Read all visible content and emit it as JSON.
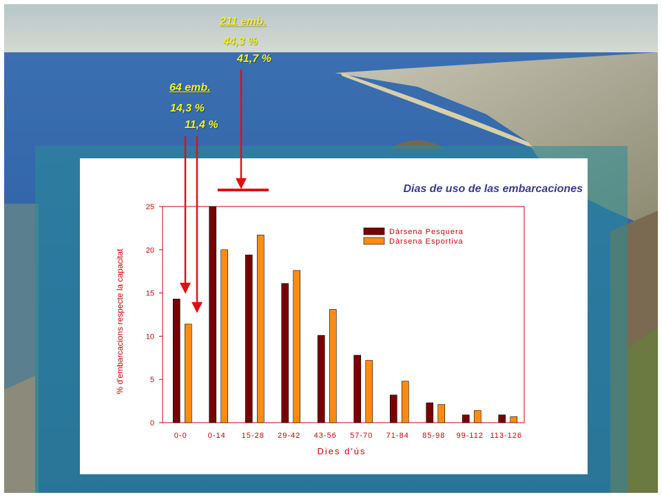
{
  "annotations": {
    "group_a_count": "64 emb.",
    "group_a_pct_1": "14,3 %",
    "group_a_pct_2": "11,4 %",
    "group_b_count": "211 emb.",
    "group_b_pct_1": "44,3 %",
    "group_b_pct_2": "41,7 %",
    "text_color": "#f2f21a",
    "arrow_color": "#e01010"
  },
  "chart_data": {
    "type": "bar",
    "title": "Dias de uso de las embarcaciones",
    "xlabel": "Dies d'ús",
    "ylabel": "% d'embarcacions respecte la capacitat",
    "categories": [
      "0-0",
      "0-14",
      "15-28",
      "29-42",
      "43-56",
      "57-70",
      "71-84",
      "85-98",
      "99-112",
      "113-126"
    ],
    "series": [
      {
        "name": "Dàrsena Pesquera",
        "color": "#7a0000",
        "values": [
          14.3,
          25.0,
          19.4,
          16.1,
          10.1,
          7.8,
          3.2,
          2.3,
          0.9,
          0.9
        ]
      },
      {
        "name": "Dàrsena Esportiva",
        "color": "#ff8c10",
        "values": [
          11.4,
          20.0,
          21.7,
          17.6,
          13.1,
          7.2,
          4.8,
          2.1,
          1.4,
          0.7
        ]
      }
    ],
    "ylim": [
      0,
      25
    ],
    "yticks": [
      0,
      5,
      10,
      15,
      20,
      25
    ],
    "grid": false,
    "legend": "top-right",
    "axis_color": "#cc0000"
  }
}
